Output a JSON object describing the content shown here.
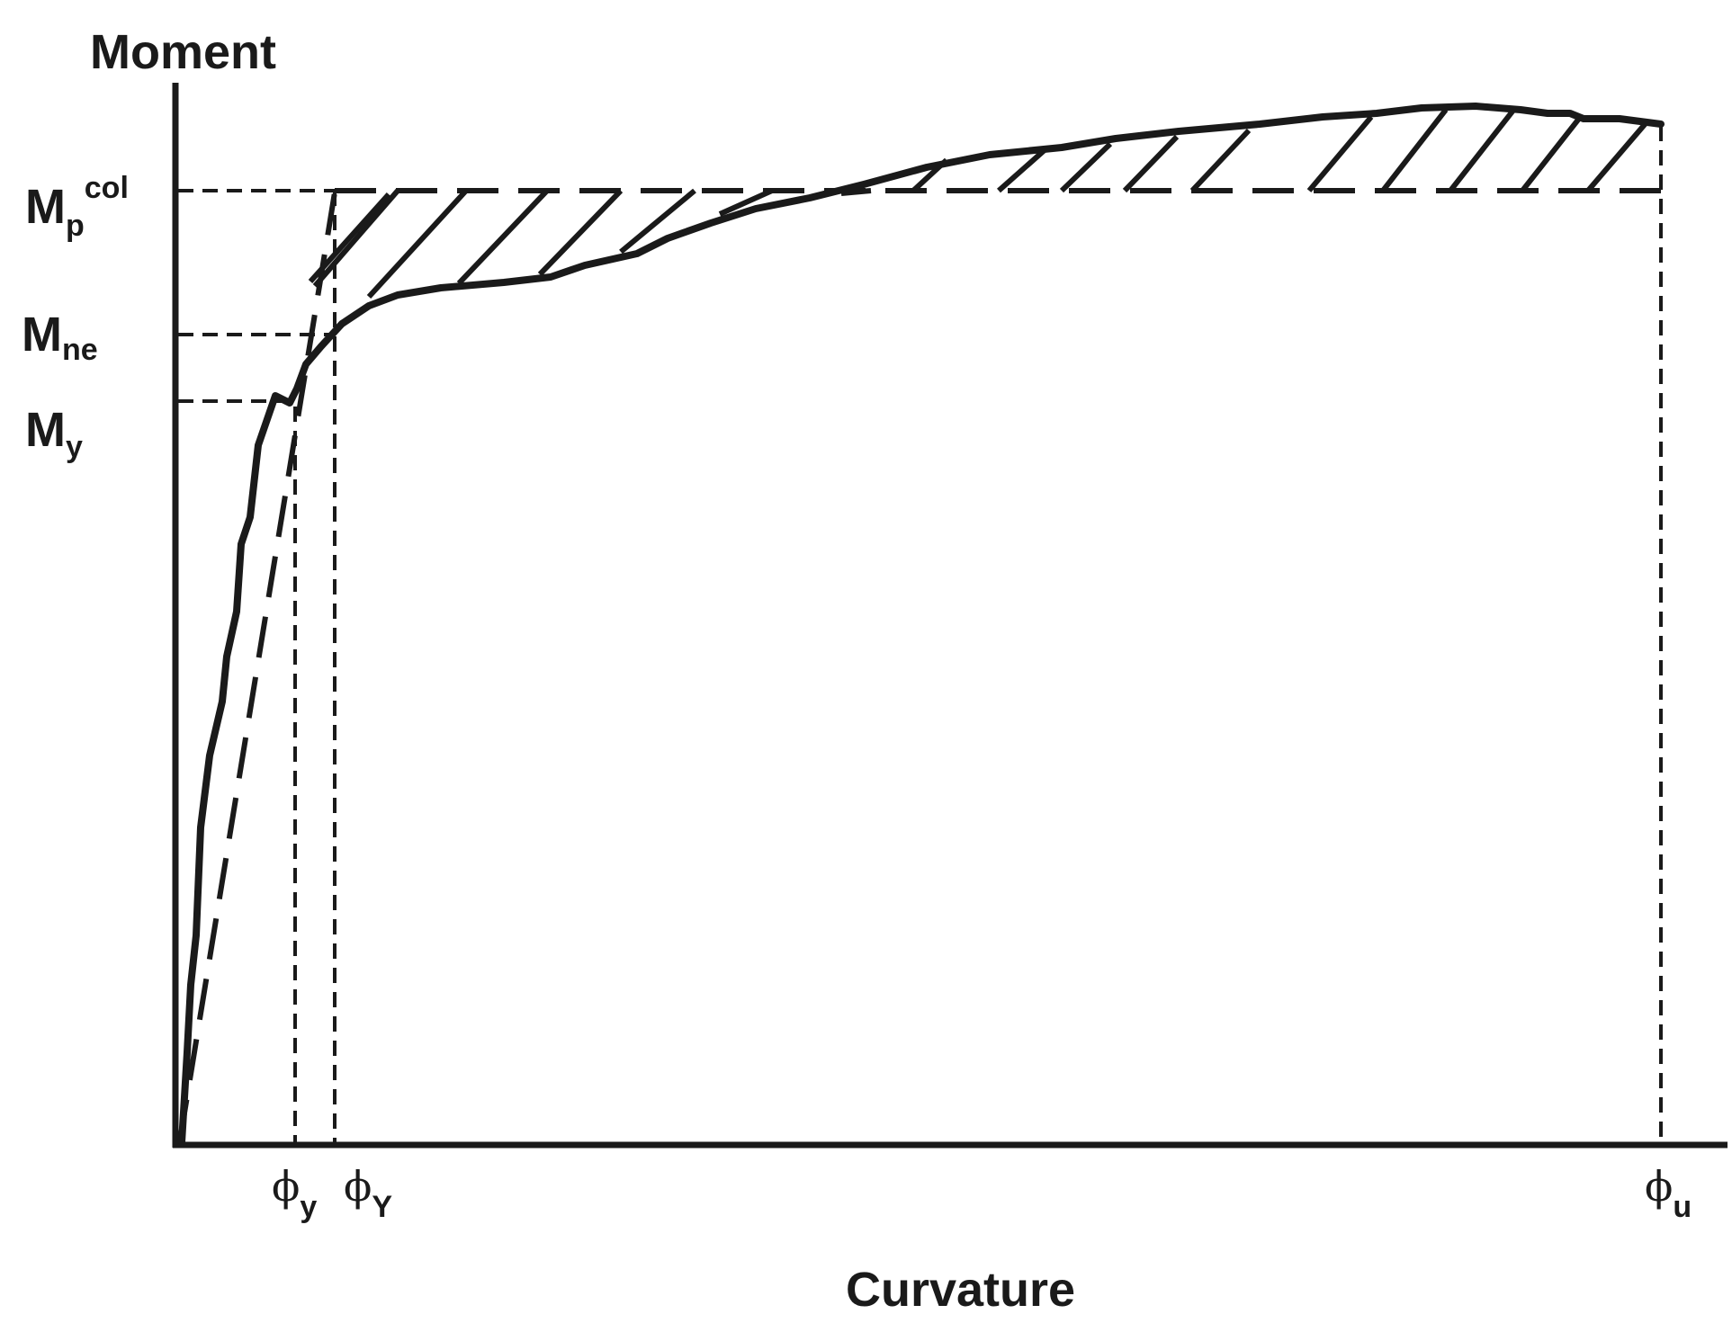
{
  "chart_data": {
    "type": "diagram",
    "ylabel": "Moment",
    "xlabel": "Curvature",
    "y_labels": {
      "Mp": {
        "main": "M",
        "sub": "p",
        "sup": "col"
      },
      "Mne": {
        "main": "M",
        "sub": "ne"
      },
      "My": {
        "main": "M",
        "sub": "y"
      }
    },
    "x_labels": {
      "phi_y": {
        "main": "ϕ",
        "sub": "y"
      },
      "phi_Y": {
        "main": "ϕ",
        "sub": "Y"
      },
      "phi_u": {
        "main": "ϕ",
        "sub": "u"
      }
    },
    "stroke_color": "#1a1a1a",
    "background": "#ffffff"
  }
}
